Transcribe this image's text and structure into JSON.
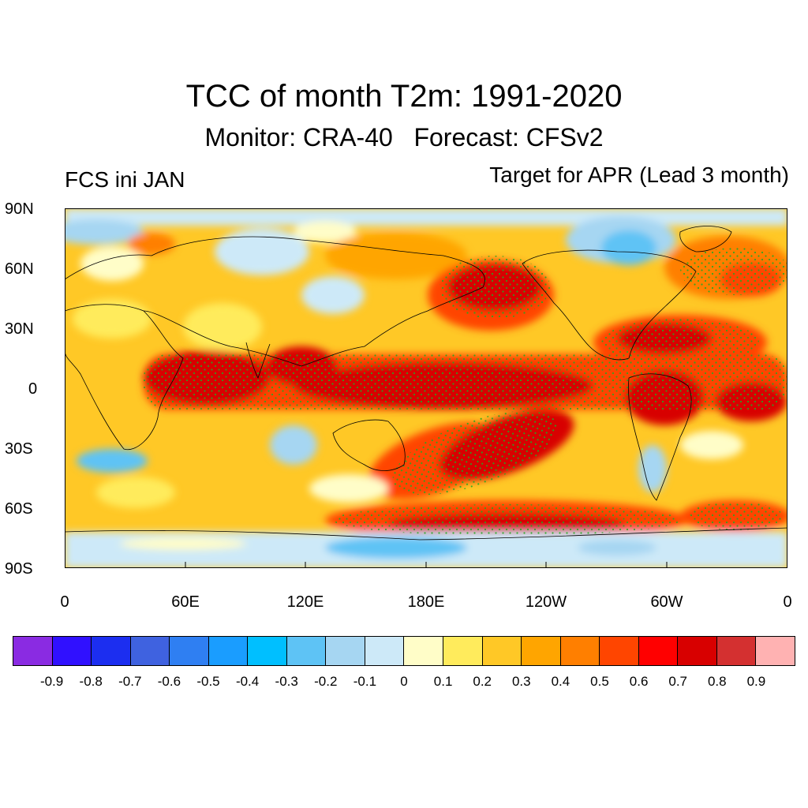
{
  "title": "TCC of month T2m: 1991-2020",
  "subtitle": "Monitor: CRA-40   Forecast: CFSv2",
  "left_label": "FCS ini JAN",
  "right_label": "Target for APR (Lead 3 month)",
  "lat_labels": [
    "90N",
    "60N",
    "30N",
    "0",
    "30S",
    "60S",
    "90S"
  ],
  "lon_labels": [
    "0",
    "60E",
    "120E",
    "180E",
    "120W",
    "60W",
    "0"
  ],
  "colorbar": {
    "colors": [
      "#8a2be2",
      "#3010ff",
      "#1c2ef0",
      "#3f62e0",
      "#2f7ff2",
      "#1a9dff",
      "#00bfff",
      "#5ec3f5",
      "#a6d6f2",
      "#cde9f8",
      "#fffdc8",
      "#ffeb5c",
      "#ffc826",
      "#ffa500",
      "#ff7f00",
      "#ff4500",
      "#ff0000",
      "#d80000",
      "#d43030",
      "#ffb2b2"
    ],
    "labels": [
      "-0.9",
      "-0.8",
      "-0.7",
      "-0.6",
      "-0.5",
      "-0.4",
      "-0.3",
      "-0.2",
      "-0.1",
      "0",
      "0.1",
      "0.2",
      "0.3",
      "0.4",
      "0.5",
      "0.6",
      "0.7",
      "0.8",
      "0.9"
    ]
  },
  "stipple_color": "#22aa22",
  "coastline_color": "#000000"
}
